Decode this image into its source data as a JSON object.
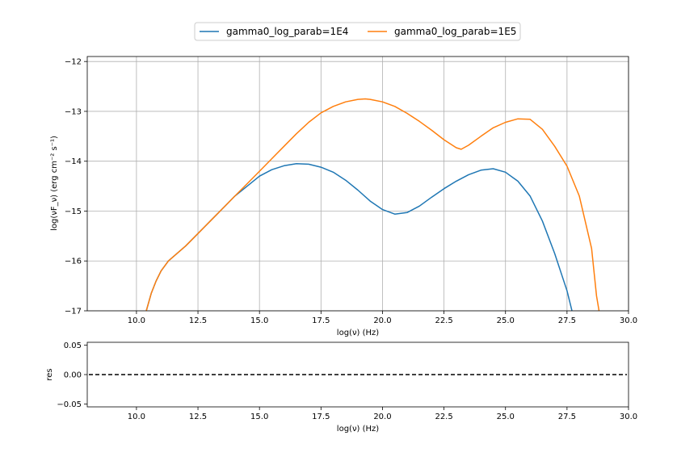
{
  "chart_data": [
    {
      "type": "line",
      "xlabel": "log(ν)  (Hz)",
      "ylabel": "log(νF_ν)  (erg cm⁻²  s⁻¹)",
      "xlim": [
        8.0,
        30.0
      ],
      "ylim": [
        -17.0,
        -11.9
      ],
      "x_ticks": [
        "10.0",
        "12.5",
        "15.0",
        "17.5",
        "20.0",
        "22.5",
        "25.0",
        "27.5",
        "30.0"
      ],
      "y_ticks": [
        "−12",
        "−13",
        "−14",
        "−15",
        "−16",
        "−17"
      ],
      "grid": true,
      "legend_position": "top-center",
      "series": [
        {
          "name": "gamma0_log_parab=1E4",
          "color": "#1f77b4",
          "points": [
            [
              10.4,
              -17.0
            ],
            [
              10.6,
              -16.65
            ],
            [
              10.8,
              -16.4
            ],
            [
              11.0,
              -16.2
            ],
            [
              11.3,
              -16.0
            ],
            [
              12.0,
              -15.7
            ],
            [
              12.5,
              -15.45
            ],
            [
              13.0,
              -15.2
            ],
            [
              13.5,
              -14.95
            ],
            [
              14.0,
              -14.7
            ],
            [
              14.5,
              -14.5
            ],
            [
              15.0,
              -14.3
            ],
            [
              15.5,
              -14.17
            ],
            [
              16.0,
              -14.09
            ],
            [
              16.5,
              -14.05
            ],
            [
              17.0,
              -14.06
            ],
            [
              17.5,
              -14.12
            ],
            [
              18.0,
              -14.22
            ],
            [
              18.5,
              -14.38
            ],
            [
              19.0,
              -14.58
            ],
            [
              19.5,
              -14.8
            ],
            [
              20.0,
              -14.97
            ],
            [
              20.5,
              -15.06
            ],
            [
              21.0,
              -15.03
            ],
            [
              21.5,
              -14.9
            ],
            [
              22.0,
              -14.72
            ],
            [
              22.5,
              -14.55
            ],
            [
              23.0,
              -14.4
            ],
            [
              23.5,
              -14.27
            ],
            [
              24.0,
              -14.18
            ],
            [
              24.5,
              -14.15
            ],
            [
              25.0,
              -14.22
            ],
            [
              25.5,
              -14.4
            ],
            [
              26.0,
              -14.7
            ],
            [
              26.5,
              -15.2
            ],
            [
              27.0,
              -15.85
            ],
            [
              27.5,
              -16.6
            ],
            [
              27.7,
              -17.0
            ]
          ]
        },
        {
          "name": "gamma0_log_parab=1E5",
          "color": "#ff7f0e",
          "points": [
            [
              10.4,
              -17.0
            ],
            [
              10.6,
              -16.65
            ],
            [
              10.8,
              -16.4
            ],
            [
              11.0,
              -16.2
            ],
            [
              11.3,
              -16.0
            ],
            [
              12.0,
              -15.7
            ],
            [
              12.5,
              -15.45
            ],
            [
              13.0,
              -15.2
            ],
            [
              13.5,
              -14.95
            ],
            [
              14.0,
              -14.7
            ],
            [
              14.5,
              -14.45
            ],
            [
              15.0,
              -14.2
            ],
            [
              15.5,
              -13.95
            ],
            [
              16.0,
              -13.7
            ],
            [
              16.5,
              -13.45
            ],
            [
              17.0,
              -13.22
            ],
            [
              17.5,
              -13.03
            ],
            [
              18.0,
              -12.9
            ],
            [
              18.5,
              -12.81
            ],
            [
              19.0,
              -12.76
            ],
            [
              19.3,
              -12.75
            ],
            [
              19.5,
              -12.76
            ],
            [
              20.0,
              -12.81
            ],
            [
              20.5,
              -12.9
            ],
            [
              21.0,
              -13.04
            ],
            [
              21.5,
              -13.2
            ],
            [
              22.0,
              -13.38
            ],
            [
              22.5,
              -13.57
            ],
            [
              23.0,
              -13.73
            ],
            [
              23.2,
              -13.76
            ],
            [
              23.5,
              -13.68
            ],
            [
              24.0,
              -13.5
            ],
            [
              24.5,
              -13.33
            ],
            [
              25.0,
              -13.22
            ],
            [
              25.5,
              -13.15
            ],
            [
              26.0,
              -13.16
            ],
            [
              26.5,
              -13.36
            ],
            [
              27.0,
              -13.7
            ],
            [
              27.5,
              -14.1
            ],
            [
              28.0,
              -14.7
            ],
            [
              28.5,
              -15.75
            ],
            [
              28.7,
              -16.7
            ],
            [
              28.8,
              -17.0
            ]
          ]
        }
      ]
    },
    {
      "type": "line",
      "xlabel": "log(ν)  (Hz)",
      "ylabel": "res",
      "xlim": [
        8.0,
        30.0
      ],
      "ylim": [
        -0.055,
        0.055
      ],
      "x_ticks": [
        "10.0",
        "12.5",
        "15.0",
        "17.5",
        "20.0",
        "22.5",
        "25.0",
        "27.5",
        "30.0"
      ],
      "y_ticks": [
        "0.05",
        "0.00",
        "−0.05"
      ],
      "grid": false,
      "reference_line": {
        "y": 0.0,
        "style": "dashed",
        "color": "#000000"
      }
    }
  ]
}
